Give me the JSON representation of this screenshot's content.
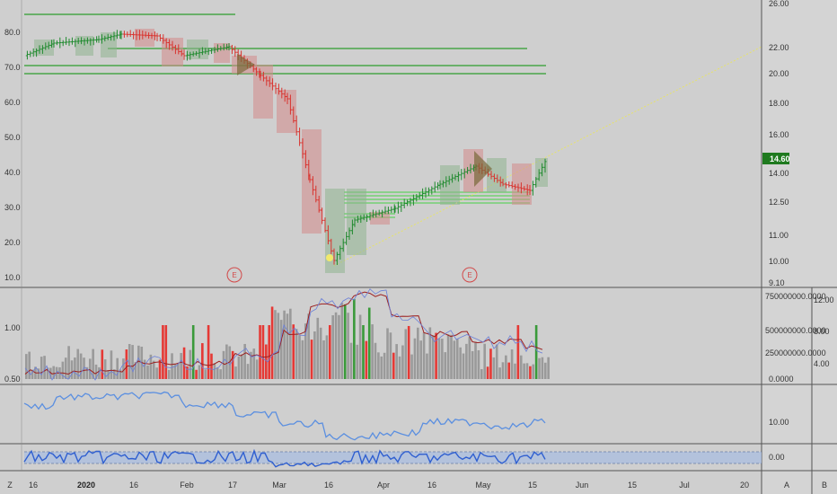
{
  "colors": {
    "background": "#cfcfcf",
    "up": "#1f8a2e",
    "down": "#d9332e",
    "price_badge": "#1f7a1f",
    "support_line": "#2e9e2e",
    "volume_up": "#3a9a3a",
    "volume_down": "#e53935",
    "volume_neutral": "#9a9a9a",
    "ma_line": "#9c1f1f",
    "indicator_line": "#5b8fe0",
    "oscillator_line": "#2f5fd0",
    "oscillator_band": "#a9bde0",
    "trend_line": "#e7e36a",
    "earnings_marker": "#d24a4a"
  },
  "price_pane": {
    "left_axis_labels": [
      "80.0",
      "70.0",
      "60.0",
      "50.0",
      "40.0",
      "30.0",
      "20.0",
      "10.0"
    ],
    "right_axis_labels": [
      "26.00",
      "22.00",
      "20.00",
      "18.00",
      "16.00",
      "14.00",
      "12.50",
      "11.00",
      "10.00",
      "9.10"
    ],
    "last_price_badge": "14.60",
    "earnings_marker_label": "E"
  },
  "volume_pane": {
    "left_axis_labels": [
      "1.00",
      "0.50"
    ],
    "right_axis_labels": [
      "750000000.0000",
      "500000000.0000",
      "250000000.0000",
      "0.0000"
    ],
    "far_right_axis_labels": [
      "12.00",
      "8.00",
      "4.00"
    ]
  },
  "indicator_pane": {
    "right_axis_labels": [
      "10.00"
    ]
  },
  "oscillator_pane": {
    "right_axis_labels": [
      "0.00"
    ]
  },
  "time_axis": {
    "labels": [
      "16",
      "2020",
      "16",
      "Feb",
      "17",
      "Mar",
      "16",
      "Apr",
      "16",
      "May",
      "15",
      "Jun",
      "15",
      "Jul",
      "20"
    ],
    "bold_labels": [
      "2020"
    ]
  },
  "corner_buttons": {
    "left": "Z",
    "auto": "A",
    "right": "B"
  }
}
